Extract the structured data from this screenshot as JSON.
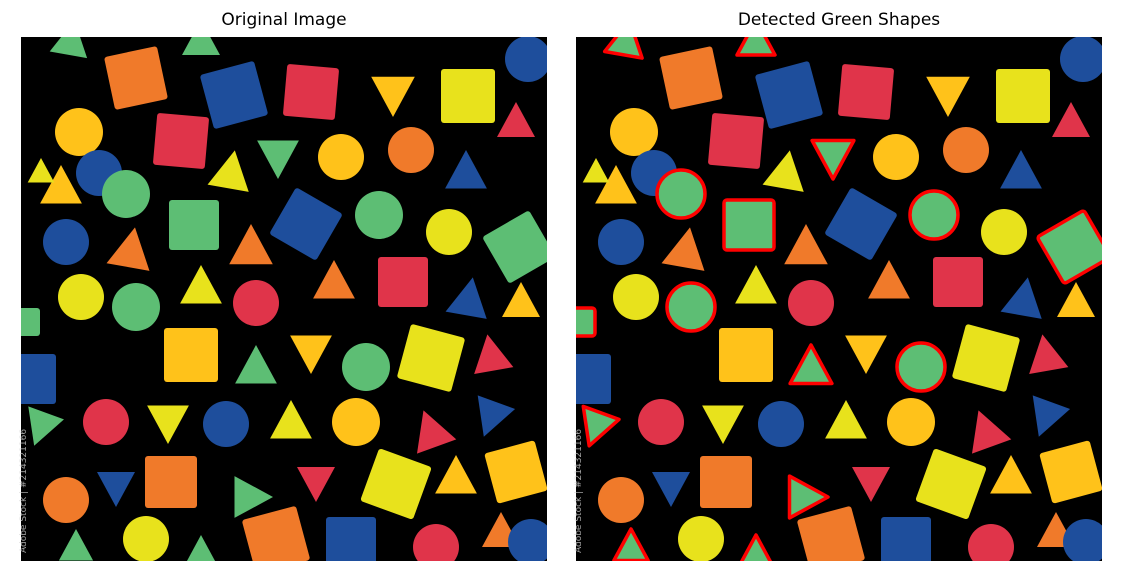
{
  "panels": [
    {
      "id": "original",
      "title": "Original Image",
      "watermark": "Adobe Stock | #214321166"
    },
    {
      "id": "detected",
      "title": "Detected Green Shapes",
      "watermark": "Adobe Stock | #214321166"
    }
  ],
  "colors": {
    "background": "#000000",
    "green": "#5DBE74",
    "blue": "#1E4E9C",
    "red": "#E0344A",
    "orange": "#F07A2A",
    "yellow": "#E8E21C",
    "amber": "#FFC21A",
    "outline": "#FF0000"
  },
  "shapes": [
    {
      "kind": "tri",
      "color": "green"
    },
    {
      "kind": "tri",
      "color": "green"
    },
    {
      "kind": "circle",
      "color": "amber"
    },
    {
      "kind": "square",
      "color": "orange"
    },
    {
      "kind": "diamond",
      "color": "blue"
    },
    {
      "kind": "square",
      "color": "red"
    },
    {
      "kind": "tri",
      "color": "amber"
    },
    {
      "kind": "square",
      "color": "yellow"
    },
    {
      "kind": "circle",
      "color": "blue"
    },
    {
      "kind": "circle",
      "color": "blue"
    },
    {
      "kind": "square",
      "color": "red"
    },
    {
      "kind": "tri",
      "color": "yellow"
    },
    {
      "kind": "tri",
      "color": "green"
    },
    {
      "kind": "circle",
      "color": "amber"
    },
    {
      "kind": "circle",
      "color": "orange"
    },
    {
      "kind": "tri",
      "color": "blue"
    },
    {
      "kind": "tri",
      "color": "red"
    },
    {
      "kind": "tri",
      "color": "amber"
    },
    {
      "kind": "circle",
      "color": "green"
    },
    {
      "kind": "square",
      "color": "green"
    },
    {
      "kind": "diamond",
      "color": "blue"
    },
    {
      "kind": "circle",
      "color": "green"
    },
    {
      "kind": "circle",
      "color": "yellow"
    },
    {
      "kind": "tri",
      "color": "yellow"
    },
    {
      "kind": "circle",
      "color": "blue"
    },
    {
      "kind": "tri",
      "color": "orange"
    },
    {
      "kind": "tri",
      "color": "orange"
    },
    {
      "kind": "diamond",
      "color": "green"
    },
    {
      "kind": "circle",
      "color": "yellow"
    },
    {
      "kind": "circle",
      "color": "green"
    },
    {
      "kind": "tri",
      "color": "yellow"
    },
    {
      "kind": "circle",
      "color": "red"
    },
    {
      "kind": "tri",
      "color": "orange"
    },
    {
      "kind": "square",
      "color": "red"
    },
    {
      "kind": "tri",
      "color": "blue"
    },
    {
      "kind": "square",
      "color": "green"
    },
    {
      "kind": "diamond",
      "color": "amber"
    },
    {
      "kind": "tri",
      "color": "green"
    },
    {
      "kind": "tri",
      "color": "amber"
    },
    {
      "kind": "circle",
      "color": "green"
    },
    {
      "kind": "square",
      "color": "yellow"
    },
    {
      "kind": "tri",
      "color": "red"
    },
    {
      "kind": "square",
      "color": "blue"
    },
    {
      "kind": "tri",
      "color": "green"
    },
    {
      "kind": "circle",
      "color": "red"
    },
    {
      "kind": "tri",
      "color": "yellow"
    },
    {
      "kind": "circle",
      "color": "blue"
    },
    {
      "kind": "tri",
      "color": "yellow"
    },
    {
      "kind": "circle",
      "color": "amber"
    },
    {
      "kind": "tri",
      "color": "red"
    },
    {
      "kind": "tri",
      "color": "blue"
    },
    {
      "kind": "tri",
      "color": "blue"
    },
    {
      "kind": "square",
      "color": "orange"
    },
    {
      "kind": "tri",
      "color": "green"
    },
    {
      "kind": "tri",
      "color": "red"
    },
    {
      "kind": "diamond",
      "color": "yellow"
    },
    {
      "kind": "tri",
      "color": "amber"
    },
    {
      "kind": "square",
      "color": "amber"
    },
    {
      "kind": "circle",
      "color": "orange"
    },
    {
      "kind": "circle",
      "color": "yellow"
    },
    {
      "kind": "diamond",
      "color": "orange"
    },
    {
      "kind": "square",
      "color": "blue"
    },
    {
      "kind": "circle",
      "color": "red"
    },
    {
      "kind": "tri",
      "color": "green"
    },
    {
      "kind": "tri",
      "color": "green"
    },
    {
      "kind": "tri",
      "color": "orange"
    },
    {
      "kind": "circle",
      "color": "blue"
    },
    {
      "kind": "tri",
      "color": "amber"
    }
  ]
}
